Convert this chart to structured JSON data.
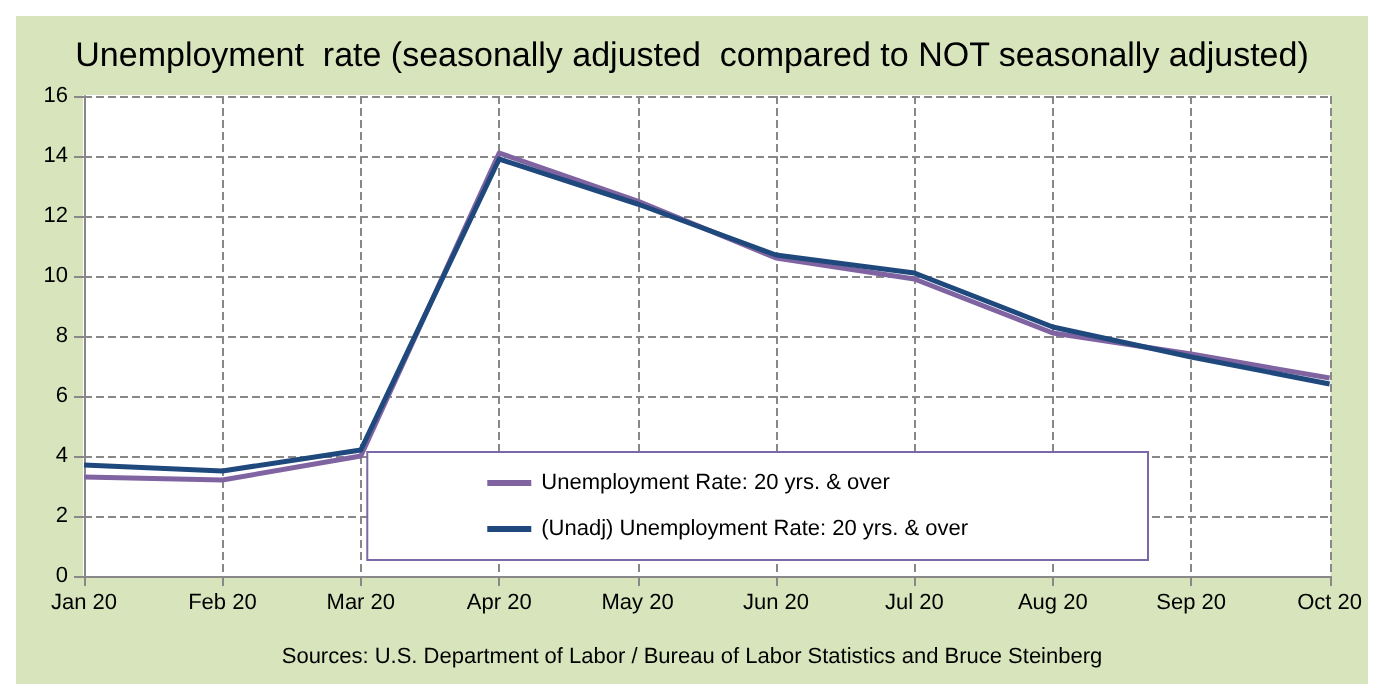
{
  "chart_data": {
    "type": "line",
    "title": "Unemployment  rate (seasonally adjusted  compared to NOT seasonally adjusted)",
    "categories": [
      "Jan 20",
      "Feb 20",
      "Mar 20",
      "Apr 20",
      "May 20",
      "Jun 20",
      "Jul 20",
      "Aug 20",
      "Sep 20",
      "Oct 20"
    ],
    "series": [
      {
        "name": "Unemployment Rate: 20 yrs. & over",
        "color": "#8064a2",
        "values": [
          3.3,
          3.2,
          4.0,
          14.1,
          12.5,
          10.6,
          9.9,
          8.1,
          7.4,
          6.6
        ]
      },
      {
        "name": "(Unadj) Unemployment Rate: 20 yrs. & over",
        "color": "#1f497d",
        "values": [
          3.7,
          3.5,
          4.2,
          13.9,
          12.4,
          10.7,
          10.1,
          8.3,
          7.3,
          6.4
        ]
      }
    ],
    "ylim": [
      0,
      16
    ],
    "yticks": [
      0,
      2,
      4,
      6,
      8,
      10,
      12,
      14,
      16
    ],
    "grid": true,
    "legend": "bottom right",
    "marker": "none",
    "line_style": "solid",
    "annotations": [
      "Sources: U.S. Department of Labor / Bureau of Labor Statistics and Bruce Steinberg"
    ]
  }
}
